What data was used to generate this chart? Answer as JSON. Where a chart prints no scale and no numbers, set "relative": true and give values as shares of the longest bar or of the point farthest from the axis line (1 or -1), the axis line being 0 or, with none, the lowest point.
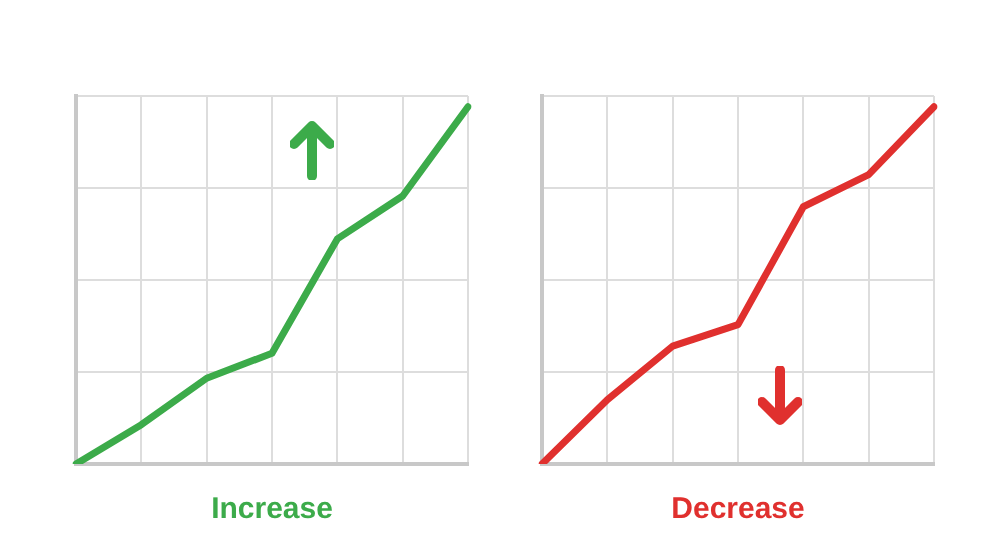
{
  "chart_data": [
    {
      "type": "line",
      "title": "Increase",
      "categories": [
        null,
        null,
        null,
        null,
        null,
        null,
        null
      ],
      "relative": true,
      "grid": true,
      "marker": "none",
      "series": [
        {
          "color": "#3cab4a",
          "values": [
            0,
            0.11,
            0.24,
            0.31,
            0.63,
            0.75,
            1
          ]
        }
      ]
    },
    {
      "type": "line",
      "title": "Decrease",
      "categories": [
        null,
        null,
        null,
        null,
        null,
        null,
        null
      ],
      "relative": true,
      "grid": true,
      "marker": "none",
      "series": [
        {
          "color": "#e0302e",
          "values": [
            0,
            0.18,
            0.33,
            0.39,
            0.72,
            0.81,
            1
          ]
        }
      ]
    }
  ]
}
